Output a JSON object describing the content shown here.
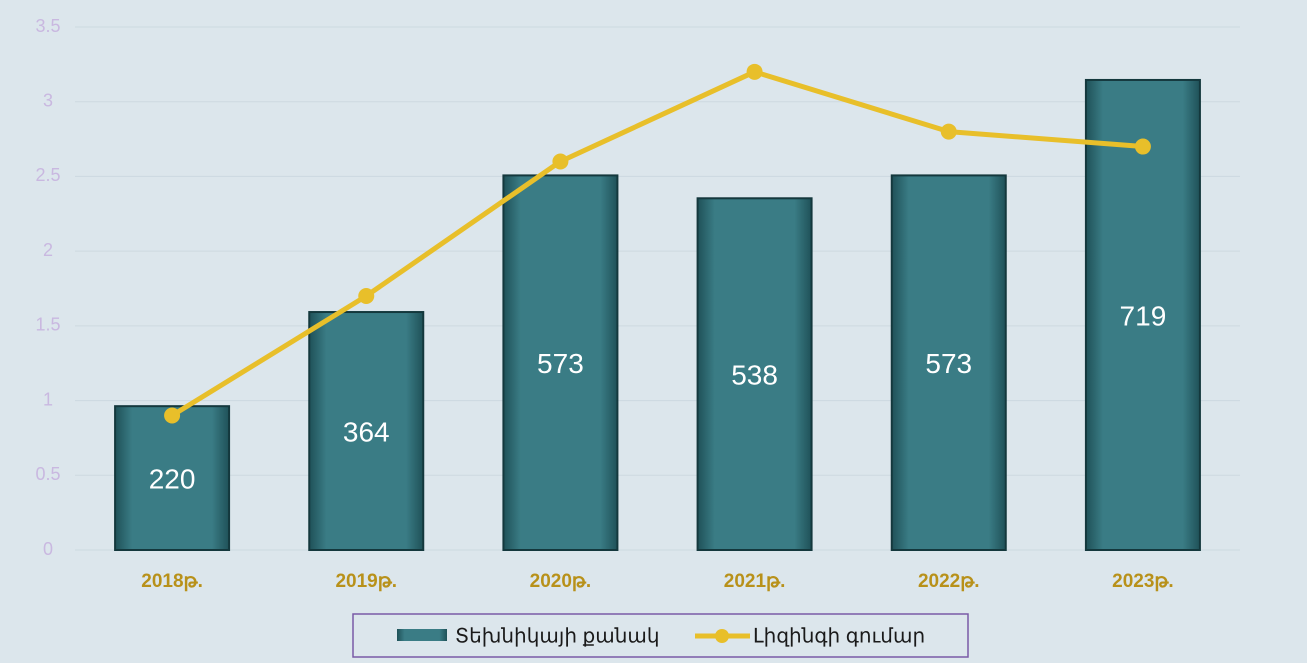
{
  "chart_data": {
    "type": "bar",
    "categories": [
      "2018թ.",
      "2019թ.",
      "2020թ.",
      "2021թ.",
      "2022թ.",
      "2023թ."
    ],
    "series": [
      {
        "name": "Տեխնիկայի քանակ",
        "type": "bar",
        "axis": "y2",
        "color": "#2f6f78",
        "values": [
          220,
          364,
          573,
          538,
          573,
          719
        ]
      },
      {
        "name": "Լիզինգի գումար",
        "type": "line",
        "color": "#e8bf2a",
        "values": [
          0.9,
          1.7,
          2.6,
          3.2,
          2.8,
          2.7
        ]
      }
    ],
    "ylim": [
      0,
      3.5
    ],
    "yticks": [
      0,
      0.5,
      1,
      1.5,
      2,
      2.5,
      3,
      3.5
    ],
    "y2lim": [
      0,
      800
    ],
    "grid": true,
    "legend": "bottom"
  }
}
